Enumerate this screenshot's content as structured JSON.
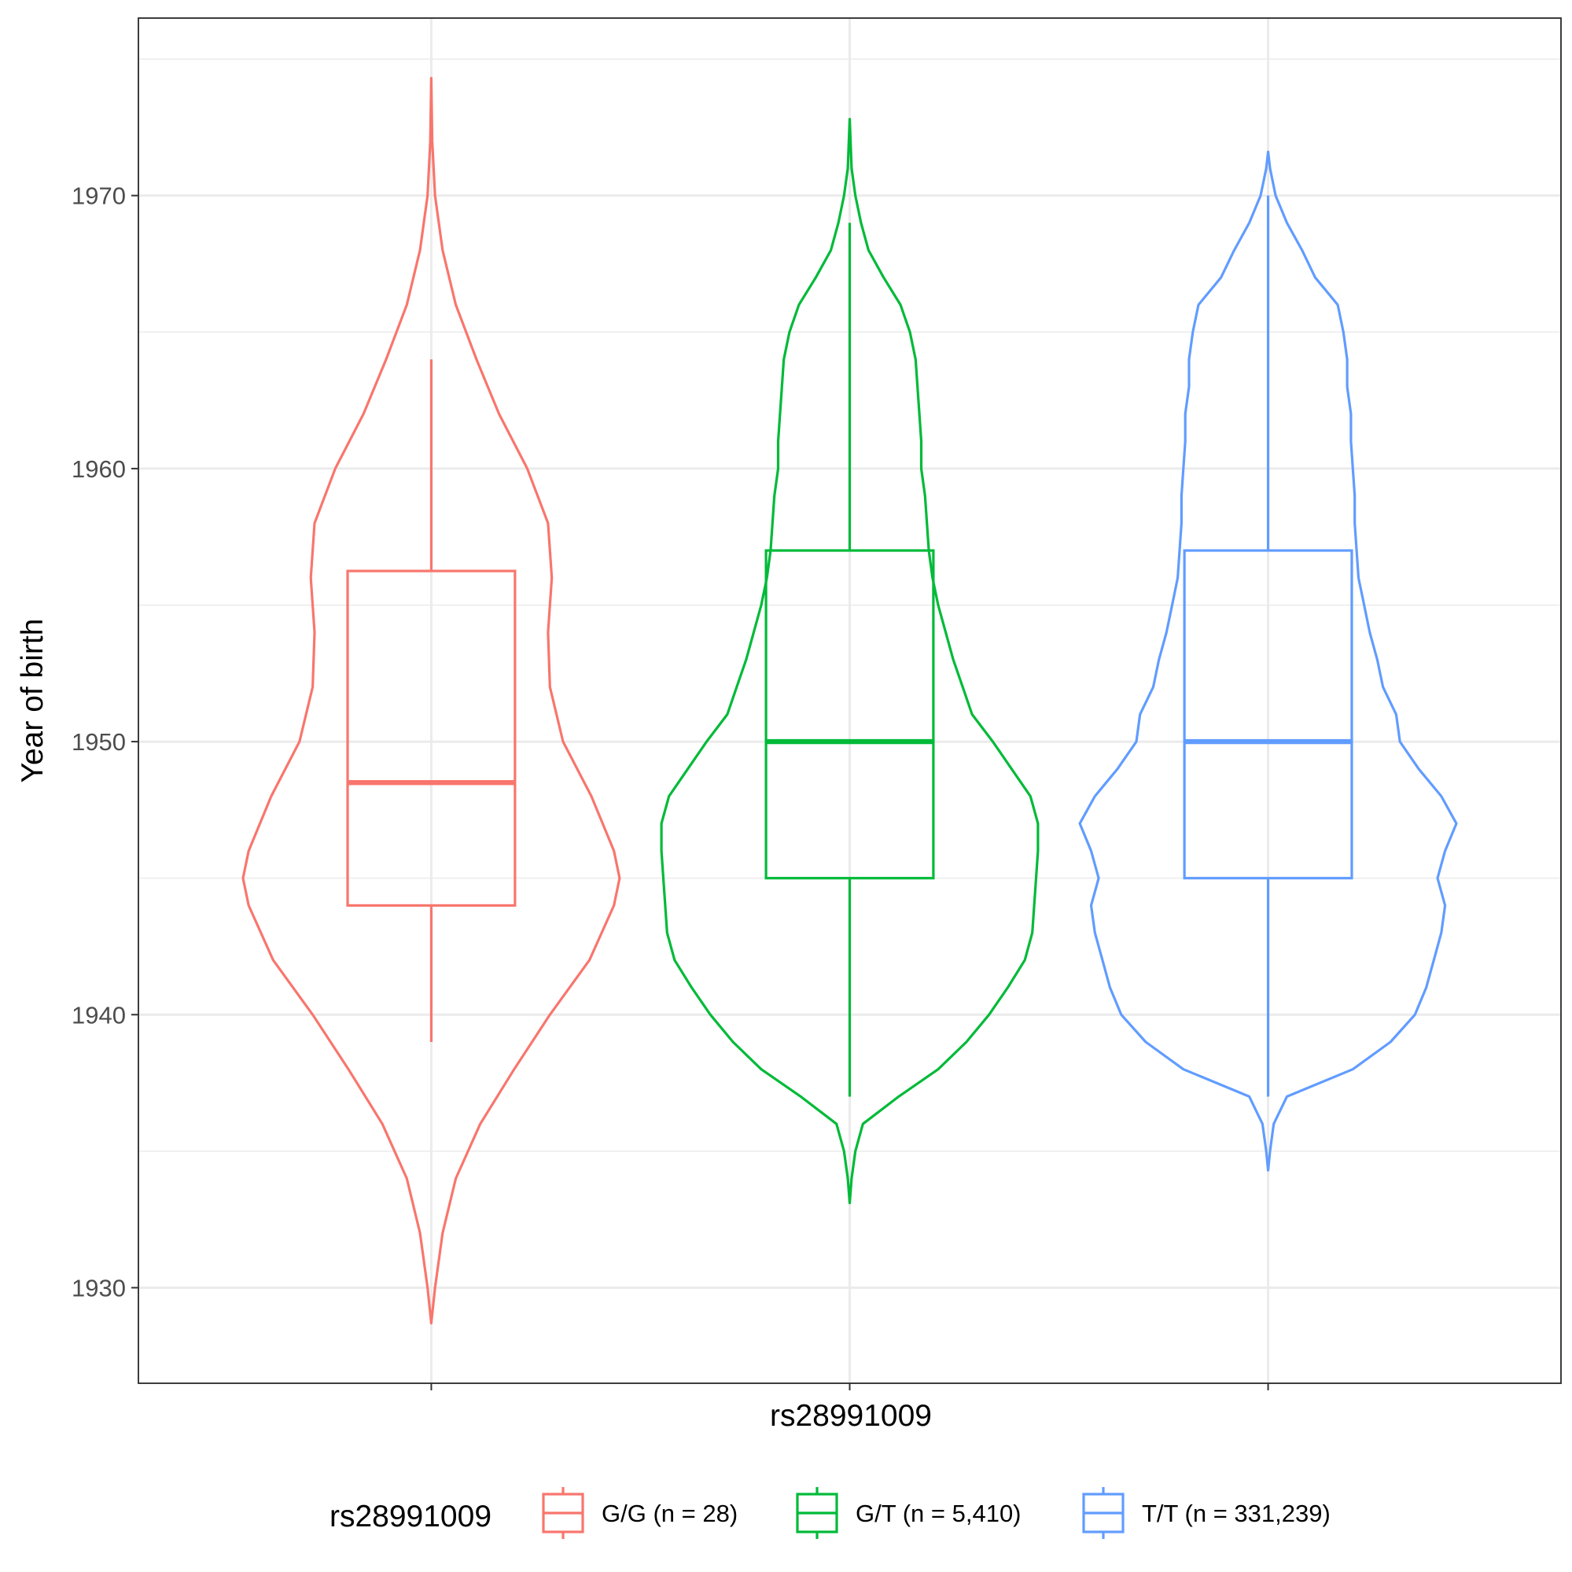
{
  "chart_data": {
    "type": "violin",
    "title": "",
    "xlabel": "rs28991009",
    "ylabel": "Year of birth",
    "ylim": [
      1926.5,
      1976.5
    ],
    "yticks": [
      1930,
      1940,
      1950,
      1960,
      1970
    ],
    "ytick_labels": [
      "1930",
      "1940",
      "1950",
      "1960",
      "1970"
    ],
    "grid": true,
    "legend": {
      "title": "rs28991009",
      "position": "bottom"
    },
    "series": [
      {
        "name": "G/G (n = 28)",
        "color": "#F8766D",
        "box": {
          "whisker_low": 1939,
          "q1": 1944,
          "median": 1948.5,
          "q3": 1956.25,
          "whisker_high": 1964
        },
        "violin": {
          "min": 1928.7,
          "max": 1974.3,
          "profile": [
            [
              1928.7,
              0.0
            ],
            [
              1930,
              0.02
            ],
            [
              1932,
              0.06
            ],
            [
              1934,
              0.13
            ],
            [
              1936,
              0.26
            ],
            [
              1938,
              0.44
            ],
            [
              1940,
              0.63
            ],
            [
              1942,
              0.84
            ],
            [
              1944,
              0.97
            ],
            [
              1945,
              1.0
            ],
            [
              1946,
              0.97
            ],
            [
              1948,
              0.85
            ],
            [
              1950,
              0.7
            ],
            [
              1952,
              0.63
            ],
            [
              1954,
              0.62
            ],
            [
              1956,
              0.64
            ],
            [
              1958,
              0.62
            ],
            [
              1960,
              0.51
            ],
            [
              1962,
              0.36
            ],
            [
              1964,
              0.24
            ],
            [
              1966,
              0.13
            ],
            [
              1968,
              0.06
            ],
            [
              1970,
              0.02
            ],
            [
              1972,
              0.005
            ],
            [
              1974.3,
              0.0
            ]
          ]
        }
      },
      {
        "name": "G/T (n = 5,410)",
        "color": "#00BA38",
        "box": {
          "whisker_low": 1937,
          "q1": 1945,
          "median": 1950,
          "q3": 1957,
          "whisker_high": 1969
        },
        "violin": {
          "min": 1933.1,
          "max": 1972.8,
          "profile": [
            [
              1933.1,
              0.0
            ],
            [
              1934,
              0.01
            ],
            [
              1935,
              0.03
            ],
            [
              1936,
              0.07
            ],
            [
              1937,
              0.26
            ],
            [
              1938,
              0.47
            ],
            [
              1939,
              0.62
            ],
            [
              1940,
              0.74
            ],
            [
              1941,
              0.84
            ],
            [
              1942,
              0.93
            ],
            [
              1943,
              0.97
            ],
            [
              1944,
              0.98
            ],
            [
              1945,
              0.99
            ],
            [
              1946,
              1.0
            ],
            [
              1947,
              1.0
            ],
            [
              1948,
              0.96
            ],
            [
              1949,
              0.86
            ],
            [
              1950,
              0.76
            ],
            [
              1951,
              0.65
            ],
            [
              1952,
              0.6
            ],
            [
              1953,
              0.55
            ],
            [
              1954,
              0.51
            ],
            [
              1955,
              0.47
            ],
            [
              1956,
              0.44
            ],
            [
              1957,
              0.42
            ],
            [
              1958,
              0.41
            ],
            [
              1959,
              0.4
            ],
            [
              1960,
              0.38
            ],
            [
              1961,
              0.38
            ],
            [
              1962,
              0.37
            ],
            [
              1963,
              0.36
            ],
            [
              1964,
              0.35
            ],
            [
              1965,
              0.32
            ],
            [
              1966,
              0.27
            ],
            [
              1967,
              0.18
            ],
            [
              1968,
              0.1
            ],
            [
              1969,
              0.06
            ],
            [
              1970,
              0.03
            ],
            [
              1971,
              0.01
            ],
            [
              1972.8,
              0.0
            ]
          ]
        }
      },
      {
        "name": "T/T (n = 331,239)",
        "color": "#619CFF",
        "box": {
          "whisker_low": 1937,
          "q1": 1945,
          "median": 1950,
          "q3": 1957,
          "whisker_high": 1970
        },
        "violin": {
          "min": 1934.3,
          "max": 1971.6,
          "profile": [
            [
              1934.3,
              0.0
            ],
            [
              1935,
              0.01
            ],
            [
              1936,
              0.03
            ],
            [
              1937,
              0.1
            ],
            [
              1938,
              0.45
            ],
            [
              1939,
              0.65
            ],
            [
              1940,
              0.78
            ],
            [
              1941,
              0.84
            ],
            [
              1942,
              0.88
            ],
            [
              1943,
              0.92
            ],
            [
              1944,
              0.94
            ],
            [
              1945,
              0.9
            ],
            [
              1946,
              0.94
            ],
            [
              1947,
              1.0
            ],
            [
              1948,
              0.92
            ],
            [
              1949,
              0.8
            ],
            [
              1950,
              0.7
            ],
            [
              1951,
              0.68
            ],
            [
              1952,
              0.61
            ],
            [
              1953,
              0.58
            ],
            [
              1954,
              0.54
            ],
            [
              1955,
              0.51
            ],
            [
              1956,
              0.48
            ],
            [
              1957,
              0.47
            ],
            [
              1958,
              0.46
            ],
            [
              1959,
              0.46
            ],
            [
              1960,
              0.45
            ],
            [
              1961,
              0.44
            ],
            [
              1962,
              0.44
            ],
            [
              1963,
              0.42
            ],
            [
              1964,
              0.42
            ],
            [
              1965,
              0.4
            ],
            [
              1966,
              0.37
            ],
            [
              1967,
              0.25
            ],
            [
              1968,
              0.18
            ],
            [
              1969,
              0.1
            ],
            [
              1970,
              0.04
            ],
            [
              1971,
              0.01
            ],
            [
              1971.6,
              0.0
            ]
          ]
        }
      }
    ]
  }
}
